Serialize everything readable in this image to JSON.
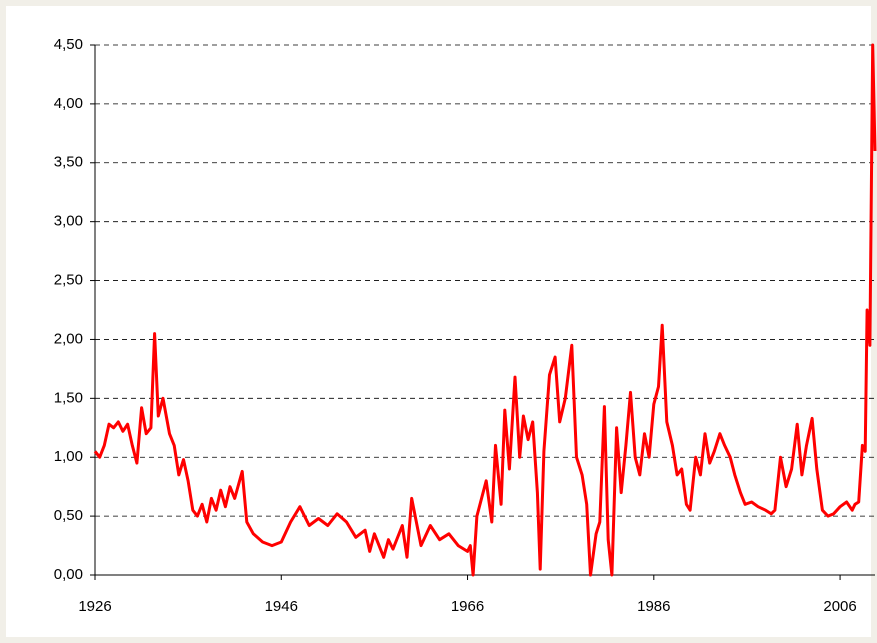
{
  "chart_data": {
    "type": "line",
    "x": [
      1926,
      1926.5,
      1927,
      1927.5,
      1928,
      1928.5,
      1929,
      1929.5,
      1930,
      1930.5,
      1931,
      1931.5,
      1932,
      1932.4,
      1932.8,
      1933.3,
      1934,
      1934.5,
      1935,
      1935.5,
      1936,
      1936.5,
      1937,
      1937.5,
      1938,
      1938.5,
      1939,
      1939.5,
      1940,
      1940.5,
      1941,
      1941.8,
      1942.3,
      1943,
      1944,
      1945,
      1946,
      1947,
      1948,
      1949,
      1950,
      1951,
      1952,
      1953,
      1954,
      1955,
      1955.5,
      1956,
      1957,
      1957.5,
      1958,
      1959,
      1959.5,
      1960,
      1961,
      1962,
      1963,
      1964,
      1965,
      1966,
      1966.3,
      1966.6,
      1967,
      1968,
      1968.6,
      1969,
      1969.6,
      1970,
      1970.5,
      1971.1,
      1971.6,
      1972,
      1972.5,
      1973,
      1973.5,
      1973.8,
      1974.2,
      1974.8,
      1975.4,
      1975.9,
      1976.5,
      1977.2,
      1977.7,
      1978.3,
      1978.8,
      1979.2,
      1979.8,
      1980.2,
      1980.7,
      1981.1,
      1981.5,
      1982,
      1982.5,
      1983,
      1983.5,
      1984,
      1984.5,
      1985,
      1985.5,
      1986,
      1986.5,
      1986.9,
      1987.4,
      1988,
      1988.5,
      1989,
      1989.5,
      1989.9,
      1990.5,
      1991,
      1991.5,
      1992,
      1992.5,
      1993.1,
      1993.6,
      1994.2,
      1994.7,
      1995.3,
      1995.8,
      1996.5,
      1997.2,
      1998,
      1998.6,
      1999,
      1999.6,
      2000.2,
      2000.8,
      2001.4,
      2001.9,
      2002.4,
      2003,
      2003.5,
      2004.1,
      2004.7,
      2005.3,
      2006,
      2006.7,
      2007.3,
      2007.6,
      2008,
      2008.4,
      2008.7,
      2008.9,
      2009.2,
      2009.5,
      2009.75
    ],
    "values": [
      1.05,
      1.0,
      1.1,
      1.28,
      1.25,
      1.3,
      1.22,
      1.28,
      1.1,
      0.95,
      1.42,
      1.2,
      1.25,
      2.05,
      1.35,
      1.5,
      1.2,
      1.1,
      0.85,
      0.98,
      0.8,
      0.55,
      0.5,
      0.6,
      0.45,
      0.65,
      0.55,
      0.72,
      0.58,
      0.75,
      0.65,
      0.88,
      0.45,
      0.35,
      0.28,
      0.25,
      0.28,
      0.45,
      0.58,
      0.42,
      0.48,
      0.42,
      0.52,
      0.45,
      0.32,
      0.38,
      0.2,
      0.35,
      0.15,
      0.3,
      0.22,
      0.42,
      0.15,
      0.65,
      0.25,
      0.42,
      0.3,
      0.35,
      0.25,
      0.2,
      0.25,
      0.0,
      0.5,
      0.8,
      0.45,
      1.1,
      0.6,
      1.4,
      0.9,
      1.68,
      1.0,
      1.35,
      1.15,
      1.3,
      0.7,
      0.05,
      1.05,
      1.7,
      1.85,
      1.3,
      1.5,
      1.95,
      1.0,
      0.85,
      0.6,
      0.0,
      0.35,
      0.45,
      1.43,
      0.3,
      0.0,
      1.25,
      0.7,
      1.1,
      1.55,
      1.0,
      0.85,
      1.2,
      1.0,
      1.45,
      1.6,
      2.12,
      1.3,
      1.1,
      0.85,
      0.9,
      0.6,
      0.55,
      1.0,
      0.85,
      1.2,
      0.95,
      1.05,
      1.2,
      1.1,
      1.0,
      0.85,
      0.7,
      0.6,
      0.62,
      0.58,
      0.55,
      0.52,
      0.55,
      1.0,
      0.75,
      0.9,
      1.28,
      0.85,
      1.1,
      1.33,
      0.9,
      0.55,
      0.5,
      0.52,
      0.58,
      0.62,
      0.55,
      0.6,
      0.62,
      1.1,
      1.05,
      2.25,
      1.95,
      4.5,
      3.6
    ],
    "color": "#ff0000",
    "xlim": [
      1926,
      2009.75
    ],
    "xticks": [
      1926,
      1946,
      1966,
      1986,
      2006
    ],
    "ylim": [
      0,
      4.5
    ],
    "yticks": [
      {
        "value": 0,
        "label": "0,00"
      },
      {
        "value": 0.5,
        "label": "0,50"
      },
      {
        "value": 1,
        "label": "1,00"
      },
      {
        "value": 1.5,
        "label": "1,50"
      },
      {
        "value": 2,
        "label": "2,00"
      },
      {
        "value": 2.5,
        "label": "2,50"
      },
      {
        "value": 3,
        "label": "3,00"
      },
      {
        "value": 3.5,
        "label": "3,50"
      },
      {
        "value": 4,
        "label": "4,00"
      },
      {
        "value": 4.5,
        "label": "4,50"
      }
    ],
    "grid": true
  }
}
